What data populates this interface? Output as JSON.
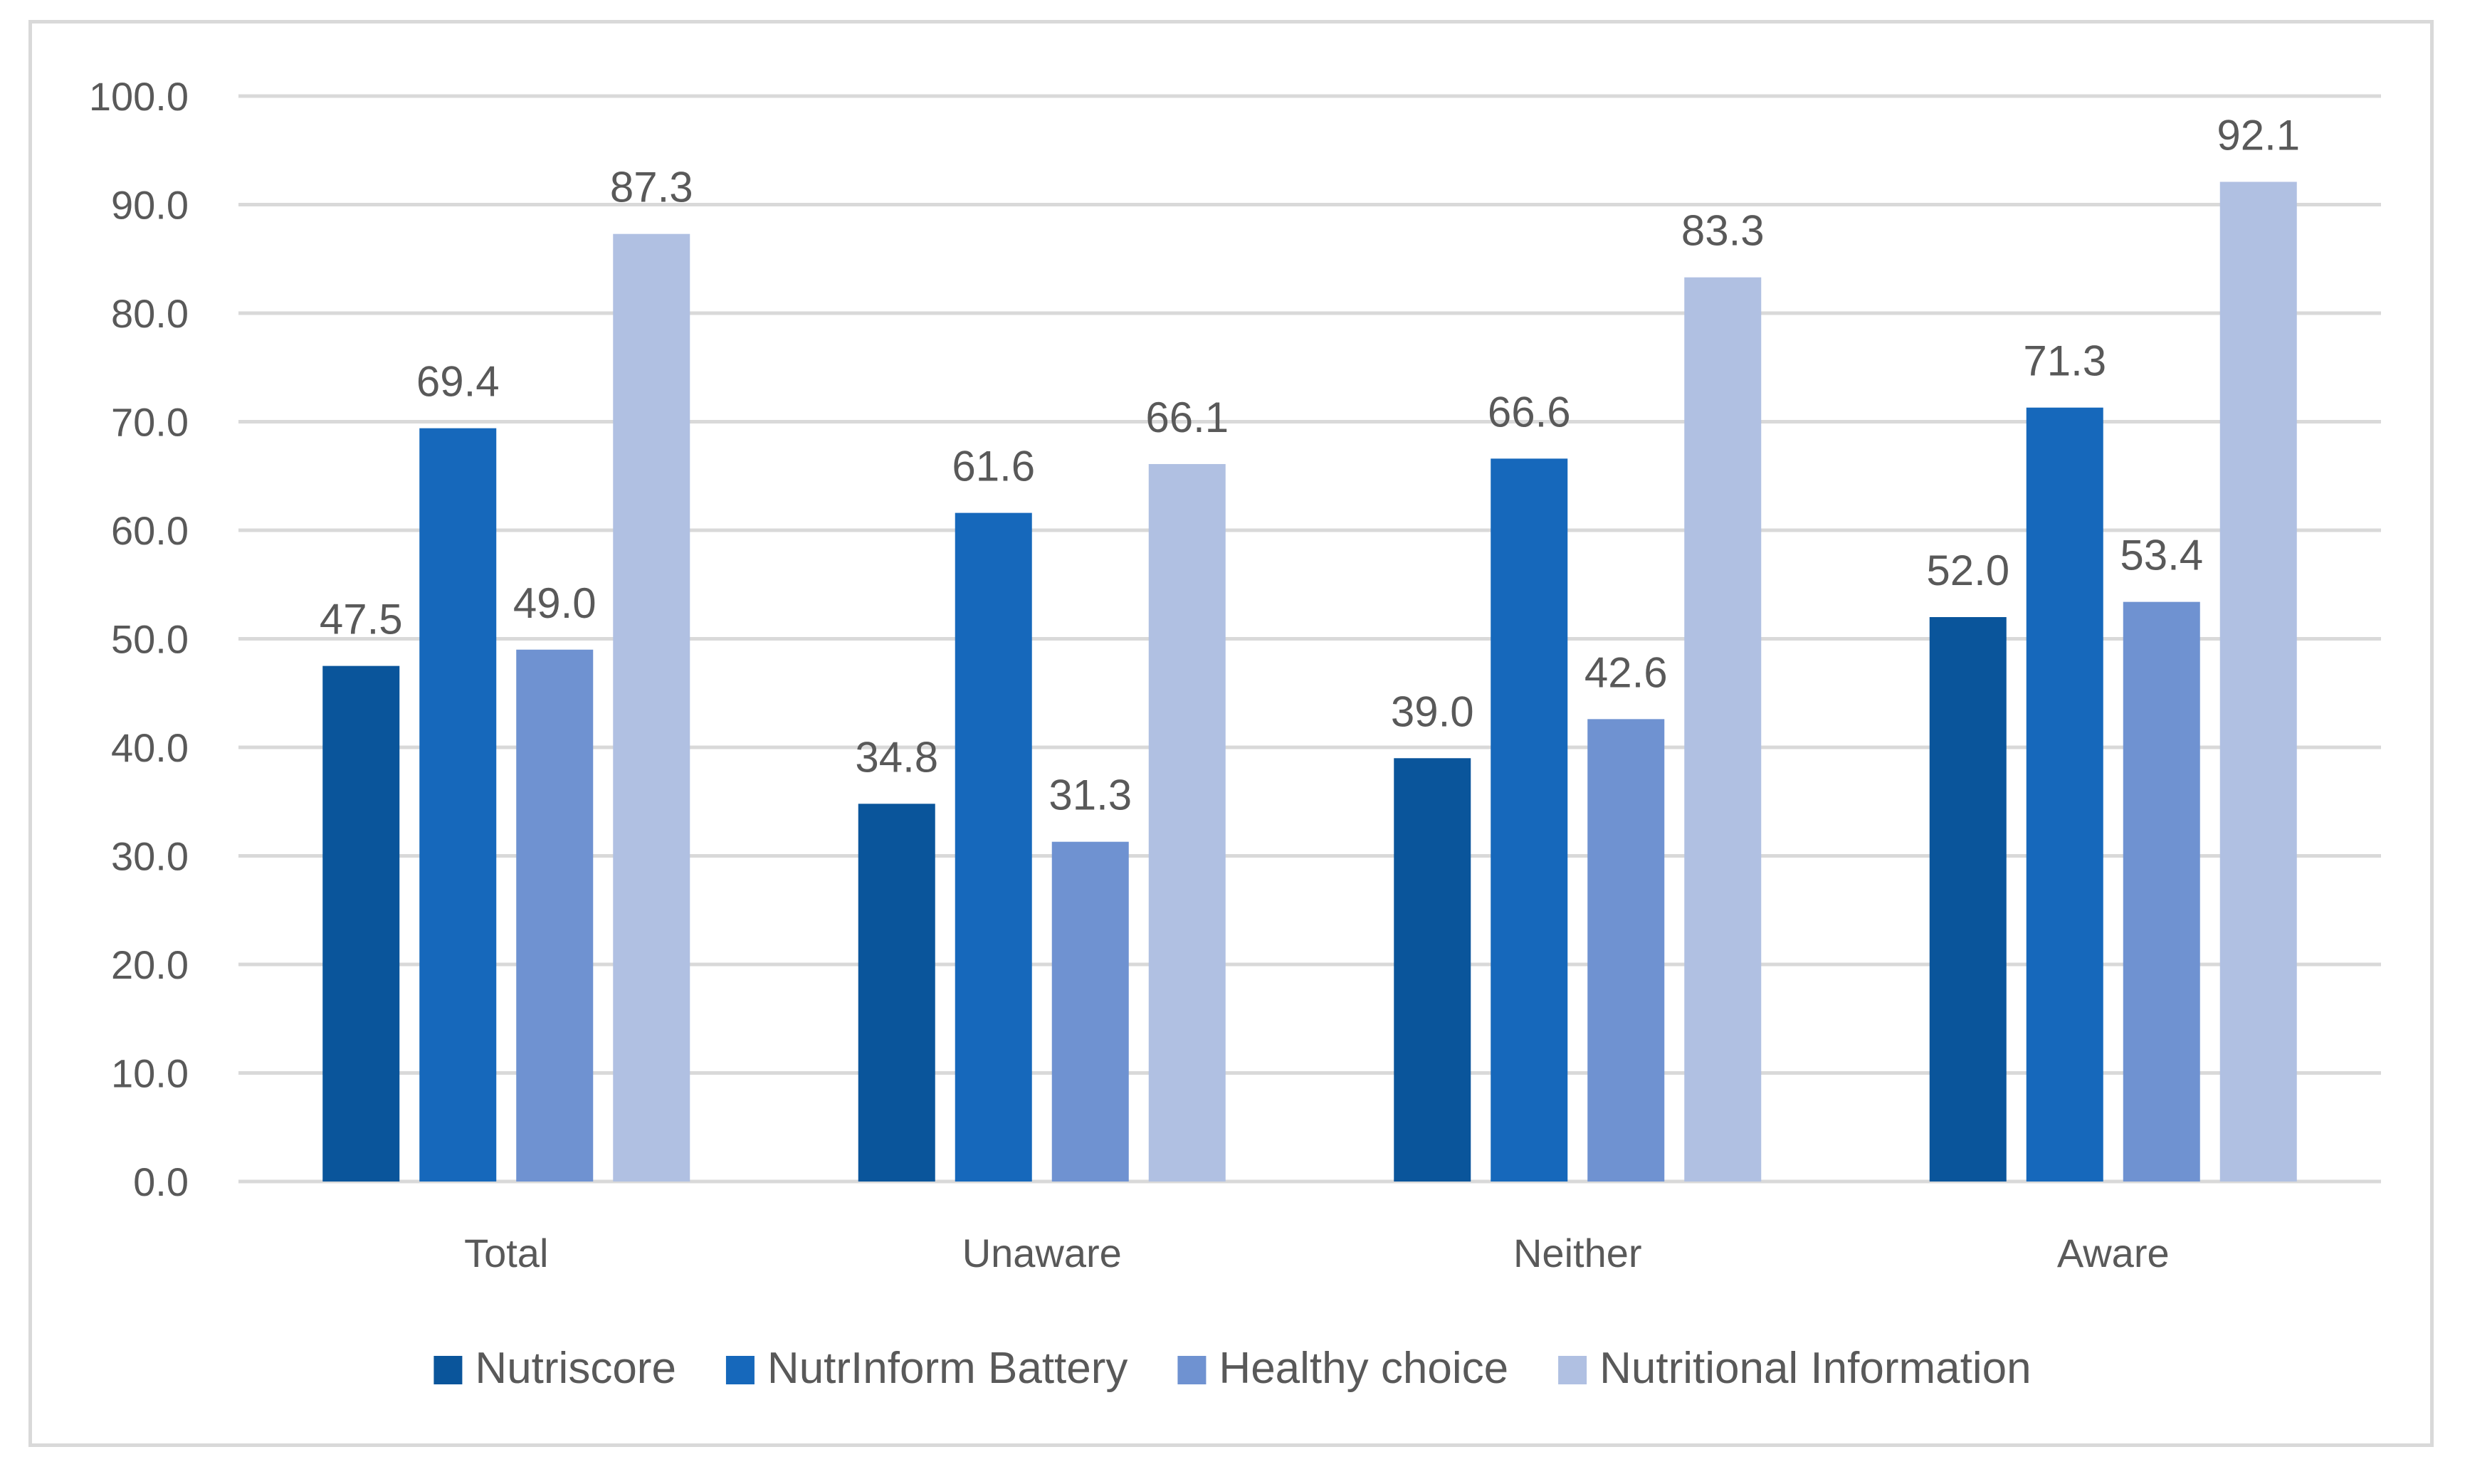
{
  "chart_data": {
    "type": "bar",
    "title": "",
    "xlabel": "",
    "ylabel": "",
    "ylim": [
      0,
      100
    ],
    "ytick_step": 10,
    "ytick_decimals": 1,
    "grid": true,
    "legend_position": "bottom",
    "categories": [
      "Total",
      "Unaware",
      "Neither",
      "Aware"
    ],
    "series": [
      {
        "name": "Nutriscore",
        "color": "#0a559b",
        "values": [
          47.5,
          34.8,
          39.0,
          52.0
        ]
      },
      {
        "name": "NutrInform Battery",
        "color": "#1668bb",
        "values": [
          69.4,
          61.6,
          66.6,
          71.3
        ]
      },
      {
        "name": "Healthy choice",
        "color": "#6f92d1",
        "values": [
          49.0,
          31.3,
          42.6,
          53.4
        ]
      },
      {
        "name": "Nutritional Information",
        "color": "#b0c0e2",
        "values": [
          87.3,
          66.1,
          83.3,
          92.1
        ]
      }
    ]
  }
}
